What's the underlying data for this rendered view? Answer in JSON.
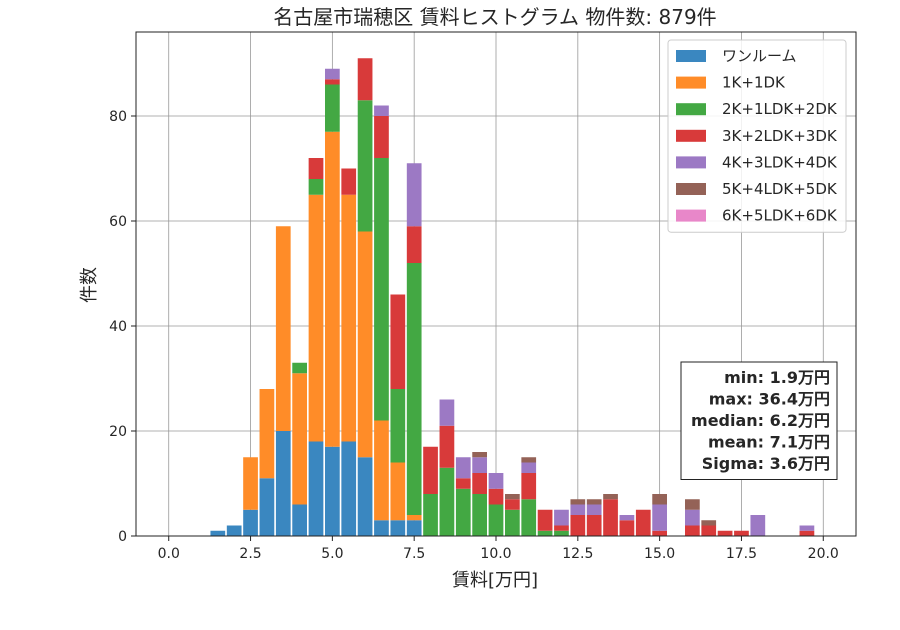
{
  "chart_data": {
    "type": "bar",
    "stacked": true,
    "title": "名古屋市瑞穂区 賃料ヒストグラム 物件数: 879件",
    "xlabel": "賃料[万円]",
    "ylabel": "件数",
    "xlim": [
      -1,
      21
    ],
    "ylim": [
      0,
      96
    ],
    "xticks": [
      "0.0",
      "2.5",
      "5.0",
      "7.5",
      "10.0",
      "12.5",
      "15.0",
      "17.5",
      "20.0"
    ],
    "yticks": [
      "0",
      "20",
      "40",
      "60",
      "80"
    ],
    "grid": true,
    "legend_position": "top-right",
    "bin_width": 0.5,
    "x": [
      1.5,
      2.0,
      2.5,
      3.0,
      3.5,
      4.0,
      4.5,
      5.0,
      5.5,
      6.0,
      6.5,
      7.0,
      7.5,
      8.0,
      8.5,
      9.0,
      9.5,
      10.0,
      10.5,
      11.0,
      11.5,
      12.0,
      12.5,
      13.0,
      13.5,
      14.0,
      14.5,
      15.0,
      16.0,
      16.5,
      17.0,
      17.5,
      18.0,
      19.5
    ],
    "series": [
      {
        "name": "ワンルーム",
        "color": "#3a87c0",
        "values": [
          1,
          2,
          5,
          11,
          20,
          6,
          18,
          17,
          18,
          15,
          3,
          3,
          3,
          0,
          0,
          0,
          0,
          0,
          0,
          0,
          0,
          0,
          0,
          0,
          0,
          0,
          0,
          0,
          0,
          0,
          0,
          0,
          0,
          0
        ]
      },
      {
        "name": "1K+1DK",
        "color": "#ff8c28",
        "values": [
          0,
          0,
          10,
          17,
          39,
          25,
          47,
          60,
          47,
          43,
          19,
          11,
          1,
          0,
          0,
          0,
          0,
          0,
          0,
          0,
          0,
          0,
          0,
          0,
          0,
          0,
          0,
          0,
          0,
          0,
          0,
          0,
          0,
          0
        ]
      },
      {
        "name": "2K+1LDK+2DK",
        "color": "#43a843",
        "values": [
          0,
          0,
          0,
          0,
          0,
          2,
          3,
          9,
          0,
          25,
          50,
          14,
          48,
          8,
          13,
          9,
          8,
          6,
          5,
          7,
          1,
          1,
          0,
          0,
          0,
          0,
          0,
          0,
          0,
          0,
          0,
          0,
          0,
          0
        ]
      },
      {
        "name": "3K+2LDK+3DK",
        "color": "#d83a3a",
        "values": [
          0,
          0,
          0,
          0,
          0,
          0,
          4,
          1,
          5,
          8,
          8,
          18,
          7,
          9,
          8,
          2,
          4,
          3,
          2,
          5,
          4,
          1,
          4,
          4,
          7,
          3,
          5,
          1,
          2,
          2,
          1,
          1,
          0,
          1
        ]
      },
      {
        "name": "4K+3LDK+4DK",
        "color": "#9c79c4",
        "values": [
          0,
          0,
          0,
          0,
          0,
          0,
          0,
          2,
          0,
          0,
          2,
          0,
          12,
          0,
          5,
          4,
          3,
          3,
          0,
          2,
          0,
          3,
          2,
          2,
          0,
          1,
          0,
          5,
          3,
          0,
          0,
          0,
          4,
          1
        ]
      },
      {
        "name": "5K+4LDK+5DK",
        "color": "#946257",
        "values": [
          0,
          0,
          0,
          0,
          0,
          0,
          0,
          0,
          0,
          0,
          0,
          0,
          0,
          0,
          0,
          0,
          1,
          0,
          1,
          1,
          0,
          0,
          1,
          1,
          1,
          0,
          0,
          2,
          2,
          1,
          0,
          0,
          0,
          0
        ]
      },
      {
        "name": "6K+5LDK+6DK",
        "color": "#e887c9",
        "values": [
          0,
          0,
          0,
          0,
          0,
          0,
          0,
          0,
          0,
          0,
          0,
          0,
          0,
          0,
          0,
          0,
          0,
          0,
          0,
          0,
          0,
          0,
          0,
          0,
          0,
          0,
          0,
          0,
          0,
          0,
          0,
          0,
          0,
          0
        ]
      }
    ],
    "stats": [
      "min: 1.9万円",
      "max: 36.4万円",
      "median: 6.2万円",
      "mean: 7.1万円",
      "Sigma: 3.6万円"
    ]
  }
}
